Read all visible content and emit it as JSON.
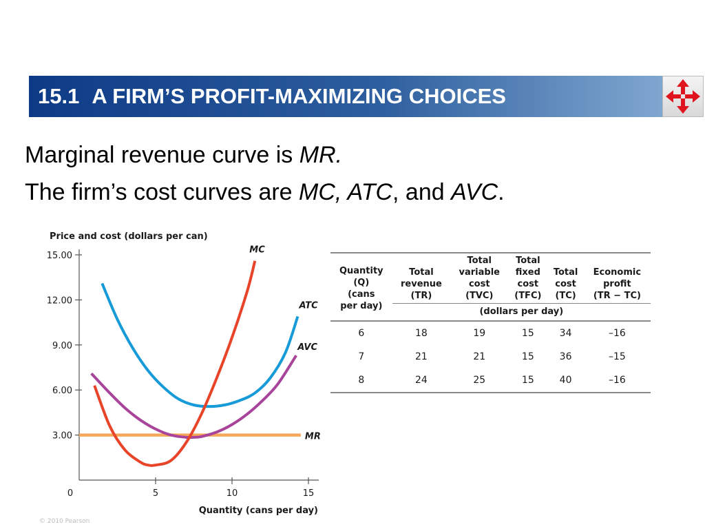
{
  "header": {
    "section_number": "15.1",
    "title": "A FIRM’S PROFIT-MAXIMIZING CHOICES"
  },
  "body": {
    "line1": {
      "text": "Marginal revenue curve is ",
      "em": "MR."
    },
    "line2": {
      "text": "The firm’s cost curves are ",
      "em1": "MC, ATC",
      "mid": ", and ",
      "em2": "AVC",
      "end": "."
    }
  },
  "chart_data": [
    {
      "type": "line",
      "title": "",
      "ylabel": "Price and cost (dollars per can)",
      "xlabel": "Quantity (cans per day)",
      "xlim": [
        0,
        15.5
      ],
      "ylim": [
        0,
        15.5
      ],
      "x_ticks": [
        0,
        5,
        10,
        15
      ],
      "y_ticks": [
        3,
        6,
        9,
        12,
        15
      ],
      "y_tick_labels": [
        "3.00",
        "6.00",
        "9.00",
        "12.00",
        "15.00"
      ],
      "x_tick_labels": [
        "0",
        "5",
        "10",
        "15"
      ],
      "grid": false,
      "series": [
        {
          "name": "MC",
          "color": "#e8442a",
          "x": [
            1.0,
            2.0,
            3.0,
            4.0,
            4.5,
            5.0,
            6.0,
            7.0,
            8.0,
            9.0,
            10.0,
            11.0,
            11.5
          ],
          "y": [
            6.3,
            3.6,
            2.0,
            1.2,
            1.0,
            1.0,
            1.3,
            2.5,
            4.4,
            6.8,
            9.5,
            12.6,
            14.6
          ]
        },
        {
          "name": "ATC",
          "color": "#179ad8",
          "x": [
            1.5,
            2.5,
            3.5,
            4.5,
            5.5,
            6.5,
            7.5,
            8.5,
            9.5,
            10.5,
            11.5,
            12.5,
            13.5,
            14.3
          ],
          "y": [
            13.1,
            10.7,
            8.8,
            7.3,
            6.2,
            5.4,
            5.0,
            4.9,
            5.0,
            5.3,
            5.8,
            6.8,
            8.5,
            10.9
          ]
        },
        {
          "name": "AVC",
          "color": "#a8449a",
          "x": [
            0.8,
            2.0,
            3.0,
            4.0,
            5.0,
            6.0,
            7.0,
            7.5,
            8.0,
            9.0,
            10.0,
            11.0,
            12.0,
            13.0,
            14.2
          ],
          "y": [
            7.1,
            5.8,
            4.8,
            4.0,
            3.4,
            3.0,
            2.85,
            2.85,
            2.9,
            3.2,
            3.7,
            4.4,
            5.3,
            6.4,
            8.3
          ]
        },
        {
          "name": "MR",
          "color": "#f6a85a",
          "x": [
            0,
            14.5
          ],
          "y": [
            3.0,
            3.0
          ]
        }
      ]
    },
    {
      "type": "table",
      "columns": [
        {
          "lines": [
            "Quantity",
            "(Q)",
            "(cans",
            "per day)"
          ]
        },
        {
          "lines": [
            "Total",
            "revenue",
            "(TR)"
          ]
        },
        {
          "lines": [
            "Total",
            "variable",
            "cost",
            "(TVC)"
          ]
        },
        {
          "lines": [
            "Total",
            "fixed",
            "cost",
            "(TFC)"
          ]
        },
        {
          "lines": [
            "Total",
            "cost",
            "(TC)"
          ]
        },
        {
          "lines": [
            "Economic",
            "profit",
            "(TR − TC)"
          ]
        }
      ],
      "units_label": "(dollars per day)",
      "rows": [
        [
          "6",
          "18",
          "19",
          "15",
          "34",
          "–16"
        ],
        [
          "7",
          "21",
          "21",
          "15",
          "36",
          "–15"
        ],
        [
          "8",
          "24",
          "25",
          "15",
          "40",
          "–16"
        ]
      ]
    }
  ],
  "footer": {
    "copyright": "© 2010 Pearson"
  },
  "colors": {
    "title_dark": "#0d3a86",
    "title_light": "#7fa6cf",
    "nav_red": "#e0141e"
  }
}
